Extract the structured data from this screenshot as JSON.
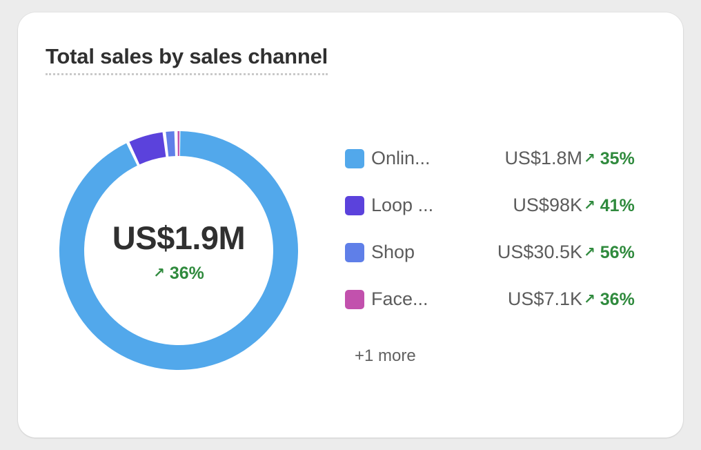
{
  "card": {
    "title": "Total sales by sales channel",
    "more_label": "+1 more"
  },
  "colors": {
    "positive": "#2f8a3d",
    "text": "#303030"
  },
  "chart_data": {
    "type": "pie",
    "variant": "donut",
    "total_label": "US$1.9M",
    "total_change": "36%",
    "unit": "US$",
    "series": [
      {
        "name": "Onlin...",
        "value_label": "US$1.8M",
        "value": 1800000,
        "change": "35%",
        "color": "#52a8eb"
      },
      {
        "name": "Loop ...",
        "value_label": "US$98K",
        "value": 98000,
        "change": "41%",
        "color": "#5b42dc"
      },
      {
        "name": "Shop",
        "value_label": "US$30.5K",
        "value": 30500,
        "change": "56%",
        "color": "#5f7fe8"
      },
      {
        "name": "Face...",
        "value_label": "US$7.1K",
        "value": 7100,
        "change": "36%",
        "color": "#c251ad"
      }
    ]
  }
}
